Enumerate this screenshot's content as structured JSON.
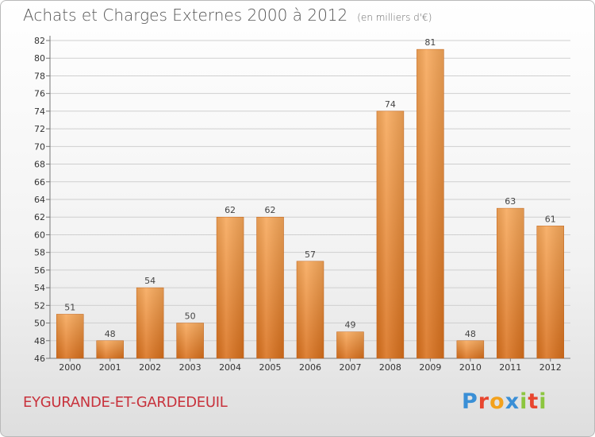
{
  "title": "Achats et Charges Externes 2000 à 2012",
  "unit": "(en milliers d'€)",
  "location": "EYGURANDE-ET-GARDEDEUIL",
  "logo": {
    "text": "Proxiti",
    "letters": [
      {
        "char": "P",
        "color": "#3a8fd6"
      },
      {
        "char": "r",
        "color": "#e8462f"
      },
      {
        "char": "o",
        "color": "#f3a11c"
      },
      {
        "char": "x",
        "color": "#3a8fd6"
      },
      {
        "char": "i",
        "color": "#8cc63f"
      },
      {
        "char": "t",
        "color": "#e8462f"
      },
      {
        "char": "i",
        "color": "#8cc63f"
      }
    ]
  },
  "colors": {
    "bar_light": "#f7a85a",
    "bar_dark": "#d9701c",
    "grid": "#cfcfcf",
    "axis_text": "#333333"
  },
  "chart_data": {
    "type": "bar",
    "title": "Achats et Charges Externes 2000 à 2012",
    "subtitle": "(en milliers d'€)",
    "categories": [
      "2000",
      "2001",
      "2002",
      "2003",
      "2004",
      "2005",
      "2006",
      "2007",
      "2008",
      "2009",
      "2010",
      "2011",
      "2012"
    ],
    "values": [
      51,
      48,
      54,
      50,
      62,
      62,
      57,
      49,
      74,
      81,
      48,
      63,
      61
    ],
    "ylim": [
      46,
      82
    ],
    "yticks": [
      46,
      48,
      50,
      52,
      54,
      56,
      58,
      60,
      62,
      64,
      66,
      68,
      70,
      72,
      74,
      76,
      78,
      80,
      82
    ],
    "grid": true,
    "data_labels": true
  }
}
